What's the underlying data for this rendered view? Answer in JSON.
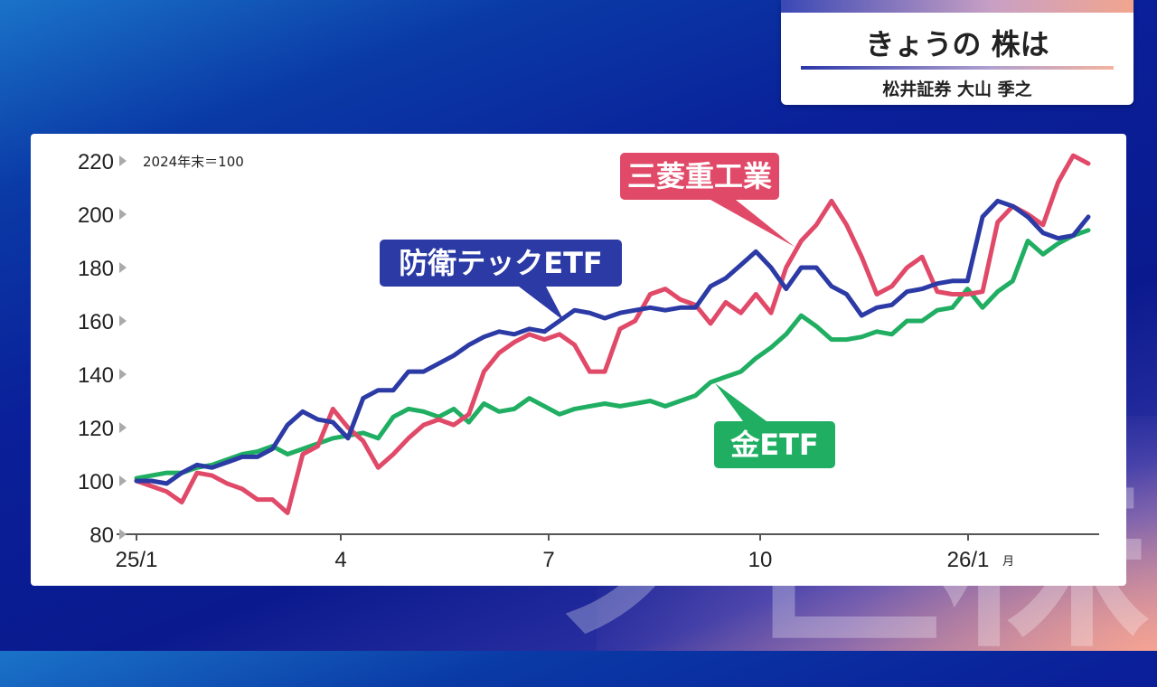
{
  "header": {
    "title": "きょうの 株は",
    "subtitle": "松井証券 大山 季之"
  },
  "watermark": "ノ巨株",
  "chart_data": {
    "type": "line",
    "note": "2024年末＝100",
    "x_ticks": [
      "25/1",
      "4",
      "7",
      "10",
      "26/1"
    ],
    "x_unit": "月",
    "ylim": [
      80,
      220
    ],
    "y_ticks": [
      80,
      100,
      120,
      140,
      160,
      180,
      200,
      220
    ],
    "grid": false,
    "series": [
      {
        "name": "三菱重工業",
        "color": "#e04a68",
        "values": [
          100,
          98,
          96,
          92,
          103,
          102,
          99,
          97,
          93,
          93,
          88,
          110,
          113,
          127,
          120,
          115,
          105,
          110,
          116,
          121,
          123,
          121,
          125,
          141,
          148,
          152,
          155,
          153,
          155,
          151,
          141,
          141,
          157,
          160,
          170,
          172,
          168,
          166,
          159,
          167,
          163,
          170,
          163,
          180,
          190,
          196,
          205,
          196,
          184,
          170,
          173,
          180,
          184,
          171,
          170,
          170,
          171,
          197,
          203,
          200,
          196,
          212,
          222,
          219
        ]
      },
      {
        "name": "防衛テックETF",
        "color": "#2b3aa5",
        "values": [
          100,
          100,
          99,
          103,
          106,
          105,
          107,
          109,
          109,
          112,
          121,
          126,
          123,
          122,
          116,
          131,
          134,
          134,
          141,
          141,
          144,
          147,
          151,
          154,
          156,
          155,
          157,
          156,
          160,
          164,
          163,
          161,
          163,
          164,
          165,
          164,
          165,
          165,
          173,
          176,
          181,
          186,
          180,
          172,
          180,
          180,
          173,
          170,
          162,
          165,
          166,
          171,
          172,
          174,
          175,
          175,
          199,
          205,
          203,
          199,
          193,
          191,
          192,
          199
        ]
      },
      {
        "name": "金ETF",
        "color": "#1fae62",
        "values": [
          101,
          102,
          103,
          103,
          105,
          106,
          108,
          110,
          111,
          113,
          110,
          112,
          114,
          116,
          117,
          118,
          116,
          124,
          127,
          126,
          124,
          127,
          122,
          129,
          126,
          127,
          131,
          128,
          125,
          127,
          128,
          129,
          128,
          129,
          130,
          128,
          130,
          132,
          137,
          139,
          141,
          146,
          150,
          155,
          162,
          158,
          153,
          153,
          154,
          156,
          155,
          160,
          160,
          164,
          165,
          172,
          165,
          171,
          175,
          190,
          185,
          189,
          192,
          194
        ]
      }
    ]
  }
}
